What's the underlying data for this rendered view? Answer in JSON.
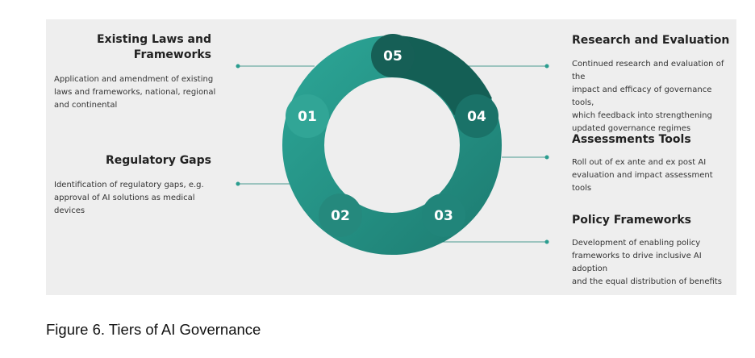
{
  "colors": {
    "ring_light": "#2a9d8f",
    "ring_mid": "#22857a",
    "ring_dark": "#145f55",
    "circle_hl": "#31a596",
    "line": "#4a9a90",
    "panel_bg": "#eeeeee"
  },
  "tiers": [
    {
      "number": "01",
      "title": "Existing Laws and Frameworks",
      "title_lines": [
        "Existing Laws and",
        "Frameworks"
      ],
      "desc_lines": [
        "Application and amendment of existing",
        "laws and frameworks, national, regional",
        "and continental"
      ]
    },
    {
      "number": "02",
      "title": "Regulatory Gaps",
      "title_lines": [
        "Regulatory Gaps"
      ],
      "desc_lines": [
        "Identification of regulatory gaps, e.g.",
        "approval of AI solutions as medical",
        "devices"
      ]
    },
    {
      "number": "03",
      "title": "Policy Frameworks",
      "title_lines": [
        "Policy Frameworks"
      ],
      "desc_lines": [
        "Development of enabling policy",
        "frameworks to drive inclusive AI adoption",
        "and the equal distribution of benefits"
      ]
    },
    {
      "number": "04",
      "title": "Assessments Tools",
      "title_lines": [
        "Assessments Tools"
      ],
      "desc_lines": [
        "Roll out of ex ante and ex post AI",
        "evaluation and impact assessment tools"
      ]
    },
    {
      "number": "05",
      "title": "Research and Evaluation",
      "title_lines": [
        "Research and Evaluation"
      ],
      "desc_lines": [
        "Continued research and evaluation of the",
        "impact and efficacy of governance tools,",
        "which feedback into strengthening",
        "updated governance regimes"
      ]
    }
  ],
  "caption": "Figure 6. Tiers of AI Governance"
}
